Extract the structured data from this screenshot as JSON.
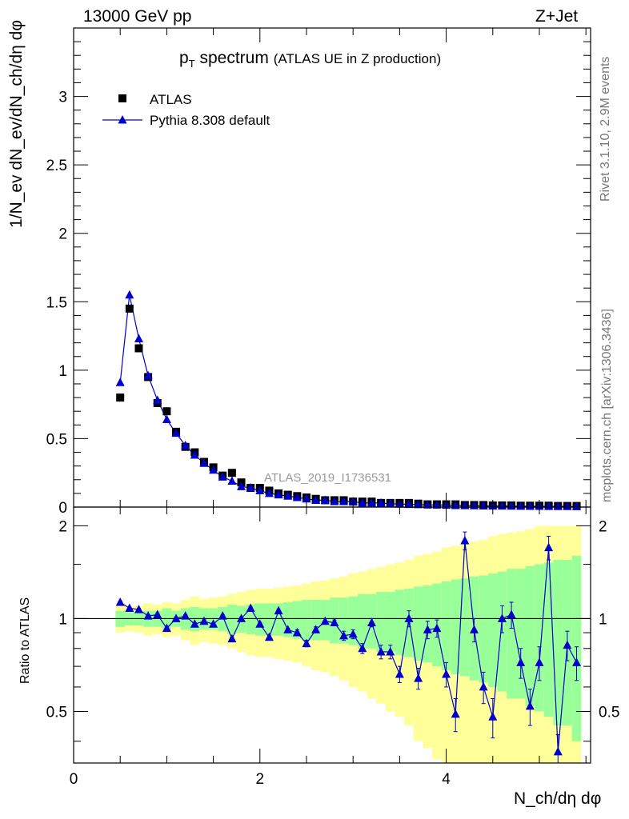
{
  "header": {
    "energy": "13000 GeV pp",
    "process": "Z+Jet"
  },
  "side_labels": {
    "rivet": "Rivet 3.1.10,  2.9M events",
    "source": "mcplots.cern.ch [arXiv:1306.3436]"
  },
  "colors": {
    "data": "#000000",
    "mc": "#0000cc",
    "band_inner": "#99ff99",
    "band_outer": "#ffff99",
    "watermark": "#999999"
  },
  "chart_data": [
    {
      "type": "scatter",
      "title_main": "p",
      "title_sub": "T",
      "title_rest": " spectrum",
      "title_note": "(ATLAS UE in Z production)",
      "watermark": "ATLAS_2019_I1736531",
      "ylabel": "1/N_ev dN_ev/dN_ch/dη dφ",
      "xlim": [
        0,
        5.55
      ],
      "ylim": [
        0,
        3.5
      ],
      "yticks": [
        "0",
        "0.5",
        "1",
        "1.5",
        "2",
        "2.5",
        "3"
      ],
      "legend_position": "top-left",
      "x": [
        0.5,
        0.6,
        0.7,
        0.8,
        0.9,
        1.0,
        1.1,
        1.2,
        1.3,
        1.4,
        1.5,
        1.6,
        1.7,
        1.8,
        1.9,
        2.0,
        2.1,
        2.2,
        2.3,
        2.4,
        2.5,
        2.6,
        2.7,
        2.8,
        2.9,
        3.0,
        3.1,
        3.2,
        3.3,
        3.4,
        3.5,
        3.6,
        3.7,
        3.8,
        3.9,
        4.0,
        4.1,
        4.2,
        4.3,
        4.4,
        4.5,
        4.6,
        4.7,
        4.8,
        4.9,
        5.0,
        5.1,
        5.2,
        5.3,
        5.4
      ],
      "series": [
        {
          "name": "ATLAS",
          "marker": "square",
          "values": [
            0.8,
            1.45,
            1.16,
            0.95,
            0.76,
            0.7,
            0.55,
            0.44,
            0.4,
            0.33,
            0.29,
            0.23,
            0.25,
            0.18,
            0.14,
            0.14,
            0.12,
            0.1,
            0.09,
            0.08,
            0.07,
            0.06,
            0.05,
            0.05,
            0.05,
            0.04,
            0.04,
            0.04,
            0.03,
            0.03,
            0.03,
            0.03,
            0.025,
            0.02,
            0.02,
            0.02,
            0.02,
            0.015,
            0.015,
            0.015,
            0.012,
            0.012,
            0.012,
            0.01,
            0.01,
            0.01,
            0.01,
            0.008,
            0.008,
            0.008
          ]
        },
        {
          "name": "Pythia 8.308 default",
          "marker": "triangle",
          "values": [
            0.91,
            1.55,
            1.23,
            0.96,
            0.78,
            0.64,
            0.54,
            0.45,
            0.38,
            0.32,
            0.27,
            0.22,
            0.19,
            0.15,
            0.14,
            0.12,
            0.1,
            0.09,
            0.08,
            0.07,
            0.06,
            0.05,
            0.05,
            0.04,
            0.04,
            0.04,
            0.03,
            0.03,
            0.03,
            0.025,
            0.022,
            0.02,
            0.018,
            0.016,
            0.015,
            0.014,
            0.012,
            0.011,
            0.01,
            0.009,
            0.008,
            0.008,
            0.007,
            0.007,
            0.006,
            0.006,
            0.005,
            0.005,
            0.005,
            0.004
          ]
        }
      ]
    },
    {
      "type": "line",
      "ylabel": "Ratio to ATLAS",
      "xlabel": "N_ch/dη dφ",
      "xlim": [
        0,
        5.55
      ],
      "ylim": [
        0.34,
        2.3
      ],
      "log_y": true,
      "reference": 1,
      "xticks": [
        "0",
        "2",
        "4"
      ],
      "yticks": [
        "0.5",
        "1",
        "2"
      ],
      "x": [
        0.5,
        0.6,
        0.7,
        0.8,
        0.9,
        1.0,
        1.1,
        1.2,
        1.3,
        1.4,
        1.5,
        1.6,
        1.7,
        1.8,
        1.9,
        2.0,
        2.1,
        2.2,
        2.3,
        2.4,
        2.5,
        2.6,
        2.7,
        2.8,
        2.9,
        3.0,
        3.1,
        3.2,
        3.3,
        3.4,
        3.5,
        3.6,
        3.7,
        3.8,
        3.9,
        4.0,
        4.1,
        4.2,
        4.3,
        4.4,
        4.5,
        4.6,
        4.7,
        4.8,
        4.9,
        5.0,
        5.1,
        5.2,
        5.3,
        5.4
      ],
      "series": [
        {
          "name": "Pythia 8.308 default",
          "values": [
            1.13,
            1.08,
            1.07,
            1.02,
            1.03,
            0.93,
            1.0,
            1.02,
            0.96,
            0.98,
            0.96,
            1.02,
            0.86,
            1.0,
            1.08,
            0.96,
            0.87,
            1.06,
            0.92,
            0.9,
            0.83,
            0.92,
            0.98,
            0.97,
            0.88,
            0.89,
            0.8,
            0.97,
            0.78,
            0.78,
            0.66,
            1.0,
            0.64,
            0.92,
            0.93,
            0.66,
            0.49,
            1.79,
            0.92,
            0.6,
            0.48,
            1.0,
            1.03,
            0.72,
            0.52,
            0.72,
            1.7,
            0.37,
            0.82,
            0.72
          ],
          "errors": [
            0.01,
            0.01,
            0.01,
            0.01,
            0.01,
            0.01,
            0.01,
            0.01,
            0.01,
            0.01,
            0.01,
            0.01,
            0.01,
            0.01,
            0.01,
            0.01,
            0.01,
            0.01,
            0.01,
            0.02,
            0.02,
            0.02,
            0.02,
            0.02,
            0.03,
            0.03,
            0.03,
            0.03,
            0.04,
            0.04,
            0.04,
            0.06,
            0.05,
            0.06,
            0.06,
            0.06,
            0.06,
            0.12,
            0.08,
            0.07,
            0.07,
            0.1,
            0.1,
            0.08,
            0.07,
            0.09,
            0.15,
            0.05,
            0.09,
            0.09
          ]
        }
      ],
      "band_inner": [
        0.06,
        0.05,
        0.05,
        0.06,
        0.06,
        0.08,
        0.06,
        0.08,
        0.09,
        0.08,
        0.08,
        0.09,
        0.11,
        0.1,
        0.11,
        0.12,
        0.12,
        0.12,
        0.13,
        0.14,
        0.15,
        0.15,
        0.15,
        0.17,
        0.17,
        0.18,
        0.2,
        0.2,
        0.22,
        0.22,
        0.24,
        0.25,
        0.27,
        0.28,
        0.3,
        0.32,
        0.34,
        0.35,
        0.37,
        0.38,
        0.4,
        0.42,
        0.45,
        0.45,
        0.48,
        0.5,
        0.52,
        0.55,
        0.55,
        0.6
      ],
      "band_outer": [
        0.1,
        0.09,
        0.1,
        0.12,
        0.11,
        0.13,
        0.12,
        0.15,
        0.18,
        0.16,
        0.17,
        0.18,
        0.2,
        0.22,
        0.24,
        0.25,
        0.25,
        0.26,
        0.27,
        0.28,
        0.3,
        0.32,
        0.33,
        0.35,
        0.37,
        0.4,
        0.42,
        0.45,
        0.47,
        0.5,
        0.52,
        0.55,
        0.6,
        0.62,
        0.65,
        0.7,
        0.72,
        0.75,
        0.78,
        0.8,
        0.85,
        0.88,
        0.9,
        0.92,
        0.95,
        1.0,
        1.0,
        1.0,
        1.0,
        1.0
      ]
    }
  ]
}
